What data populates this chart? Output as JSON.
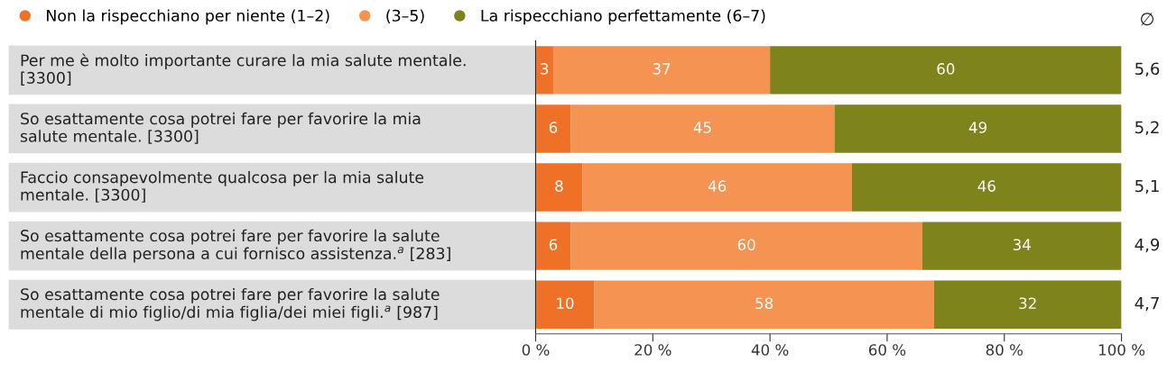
{
  "chart_data": {
    "type": "bar",
    "orientation": "horizontal",
    "stacked": true,
    "categories": [
      "Per me è molto importante curare la mia salute mentale. [3300]",
      "So esattamente cosa potrei fare per favorire la mia salute mentale. [3300]",
      "Faccio consapevolmente qualcosa per la mia salute mentale. [3300]",
      "So esattamente cosa potrei fare per favorire la salute mentale della persona a cui fornisco assistenza.$^{a}$ [283]",
      "So esattamente cosa potrei fare per favorire la salute mentale di mio figlio/di mia figlia/dei miei figli.$^{a}$ [987]"
    ],
    "series": [
      {
        "name": "Non la rispecchiano per niente (1–2)",
        "color": "#ee7127",
        "values": [
          3,
          6,
          8,
          6,
          10
        ]
      },
      {
        "name": "(3–5)",
        "color": "#f59452",
        "values": [
          37,
          45,
          46,
          60,
          58
        ]
      },
      {
        "name": "La rispecchiano perfettamente (6–7)",
        "color": "#7f831b",
        "values": [
          60,
          49,
          46,
          34,
          32
        ]
      }
    ],
    "data_labels": true,
    "xlim": [
      0,
      100
    ],
    "xticks": [
      {
        "value": 0,
        "label": "0 %"
      },
      {
        "value": 20,
        "label": "20 %"
      },
      {
        "value": 40,
        "label": "40 %"
      },
      {
        "value": 60,
        "label": "60 %"
      },
      {
        "value": 80,
        "label": "80 %"
      },
      {
        "value": 100,
        "label": "100 %"
      }
    ],
    "legend": "top left",
    "grid": false,
    "annotations": [
      "∅",
      "5,6",
      "5,2",
      "5,1",
      "4,9",
      "4,7"
    ]
  }
}
